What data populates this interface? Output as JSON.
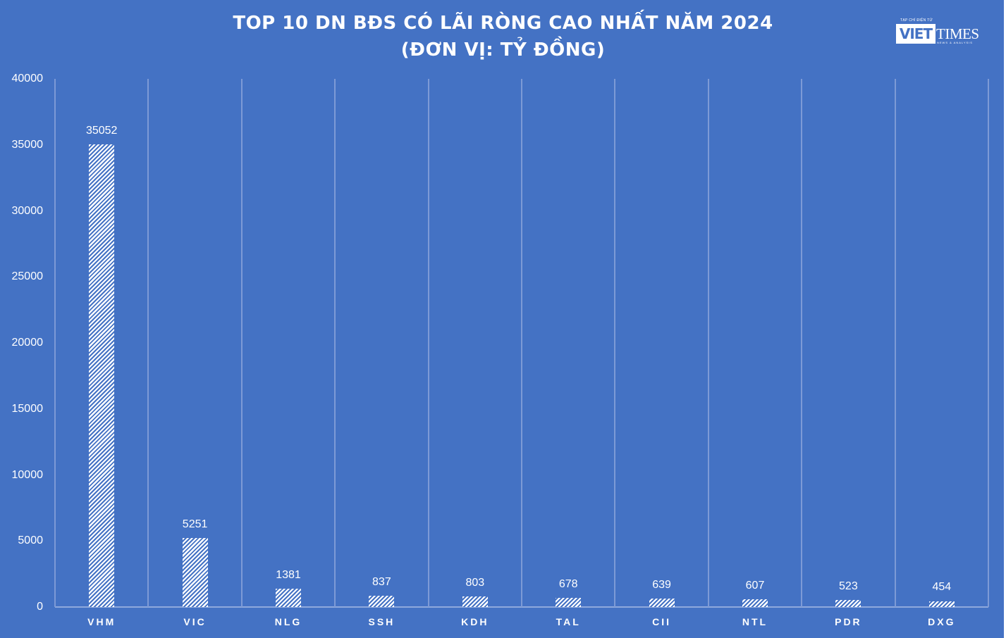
{
  "chart_data": {
    "type": "bar",
    "title": "TOP 10 DN BĐS CÓ LÃI RÒNG CAO NHẤT NĂM 2024",
    "subtitle": "(ĐƠN VỊ: TỶ ĐỒNG)",
    "categories": [
      "VHM",
      "VIC",
      "NLG",
      "SSH",
      "KDH",
      "TAL",
      "CII",
      "NTL",
      "PDR",
      "DXG"
    ],
    "values": [
      35052,
      5251,
      1381,
      837,
      803,
      678,
      639,
      607,
      523,
      454
    ],
    "value_labels": [
      "35052",
      "5251",
      "1381",
      "837",
      "803",
      "678",
      "639",
      "607",
      "523",
      "454"
    ],
    "xlabel": "",
    "ylabel": "",
    "ylim": [
      0,
      40000
    ],
    "yticks": [
      "40000",
      "35000",
      "30000",
      "25000",
      "20000",
      "15000",
      "10000",
      "5000",
      "0"
    ],
    "grid": "vertical category separators",
    "legend": "none",
    "colors": {
      "background": "#4472c4",
      "bar_pattern": "white diagonal hatch",
      "text": "#ffffff"
    }
  },
  "header": {
    "title_line1": "TOP 10 DN BĐS CÓ LÃI RÒNG CAO NHẤT NĂM 2024",
    "title_line2": "(ĐƠN VỊ: TỶ ĐỒNG)"
  },
  "logo": {
    "tagline": "TẠP CHÍ ĐIỆN TỬ",
    "word1": "VIET",
    "word2": "TIMES",
    "subline": "NEWS & ANALYSIS"
  }
}
